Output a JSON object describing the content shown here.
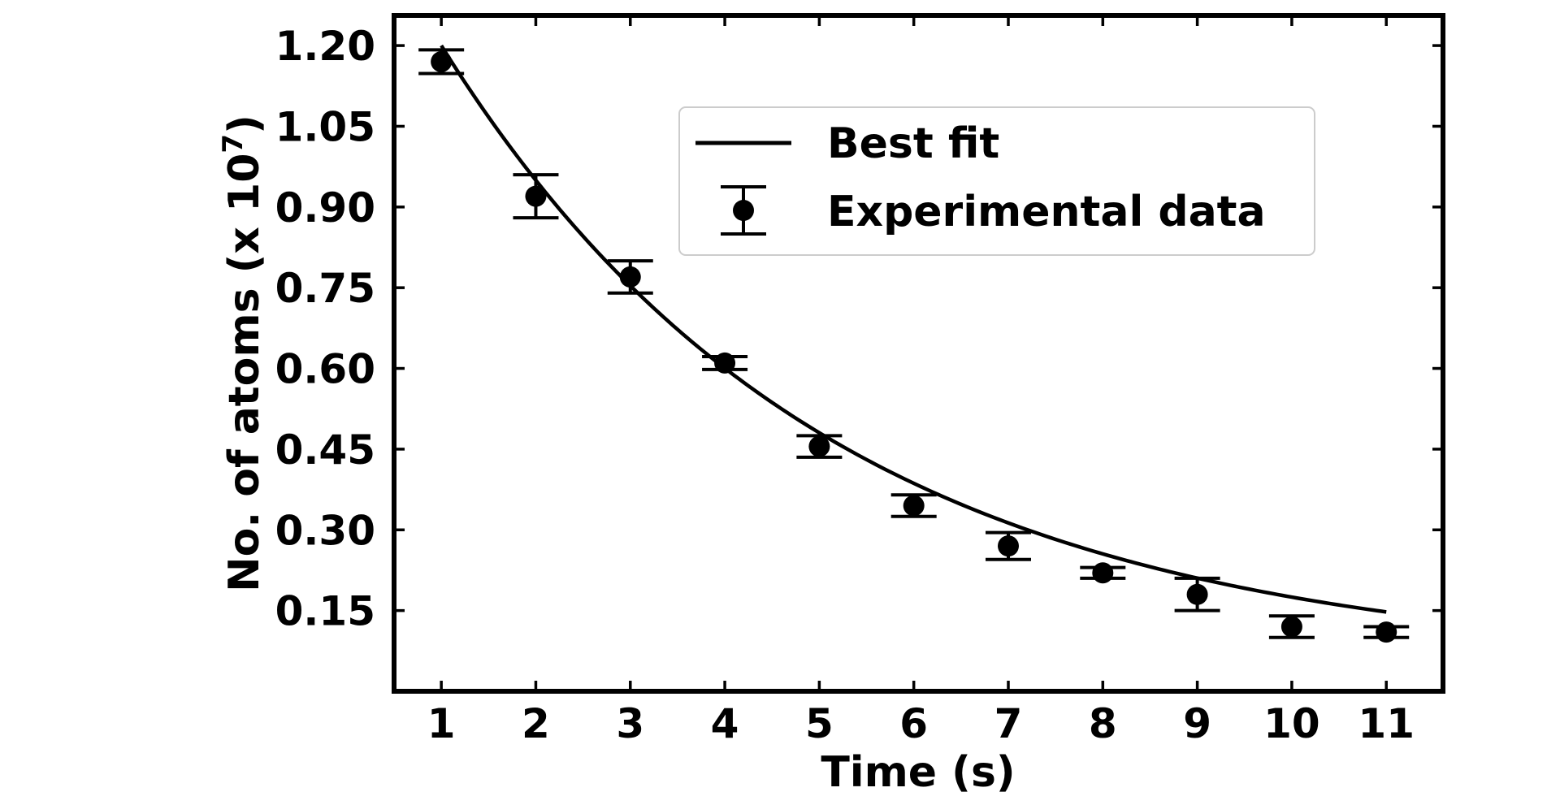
{
  "chart_data": {
    "type": "scatter",
    "xlabel": "Time (s)",
    "ylabel": "No. of atoms (x 10",
    "ylabel_exponent": "7",
    "ylabel_close": ")",
    "xlim": [
      0.5,
      11.6
    ],
    "ylim": [
      0.0,
      1.256
    ],
    "xticks": [
      1,
      2,
      3,
      4,
      5,
      6,
      7,
      8,
      9,
      10,
      11
    ],
    "xtick_labels": [
      "1",
      "2",
      "3",
      "4",
      "5",
      "6",
      "7",
      "8",
      "9",
      "10",
      "11"
    ],
    "yticks": [
      0.15,
      0.3,
      0.45,
      0.6,
      0.75,
      0.9,
      1.05,
      1.2
    ],
    "ytick_labels": [
      "0.15",
      "0.30",
      "0.45",
      "0.60",
      "0.75",
      "0.90",
      "1.05",
      "1.20"
    ],
    "legend_position": "upper-right",
    "grid": false,
    "series": [
      {
        "name": "Best fit",
        "kind": "line",
        "color": "#000000",
        "model": {
          "form": "a*exp(-b*(x-1))+c",
          "a": 1.152,
          "b": 0.245,
          "c": 0.048
        },
        "x_range": [
          1,
          11
        ]
      },
      {
        "name": "Experimental data",
        "kind": "errorbar",
        "color": "#000000",
        "x": [
          1,
          2,
          3,
          4,
          5,
          6,
          7,
          8,
          9,
          10,
          11
        ],
        "y": [
          1.17,
          0.92,
          0.77,
          0.61,
          0.455,
          0.345,
          0.27,
          0.22,
          0.18,
          0.12,
          0.11
        ],
        "yerr": [
          0.022,
          0.04,
          0.03,
          0.012,
          0.02,
          0.02,
          0.025,
          0.01,
          0.03,
          0.02,
          0.01
        ]
      }
    ]
  }
}
